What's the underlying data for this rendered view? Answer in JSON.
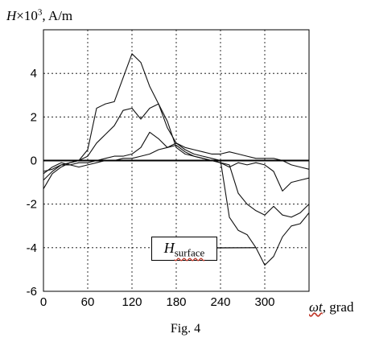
{
  "figure": {
    "caption": "Fig. 4"
  },
  "chart_data": {
    "type": "line",
    "ylabel": {
      "symbol": "H",
      "mult": "×10",
      "exp": "3",
      "unit": ", A/m"
    },
    "xlabel": {
      "symbol": "ωt",
      "rest": ", grad"
    },
    "xlim": [
      0,
      360
    ],
    "ylim": [
      -6,
      6
    ],
    "xticks": [
      "0",
      "60",
      "120",
      "180",
      "240",
      "300"
    ],
    "yticks": [
      "-6",
      "-4",
      "-2",
      "0",
      "2",
      "4"
    ],
    "grid": true,
    "annotation": {
      "symbol": "H",
      "subscript": "surface",
      "points_to": "curve-surface"
    },
    "series": [
      {
        "id": "curve-surface",
        "x": [
          0,
          12,
          24,
          36,
          48,
          60,
          72,
          84,
          96,
          108,
          120,
          132,
          144,
          156,
          168,
          180,
          192,
          204,
          216,
          228,
          240,
          252,
          264,
          276,
          288,
          300,
          312,
          324,
          336,
          348,
          360
        ],
        "y": [
          -0.9,
          -0.5,
          -0.2,
          -0.1,
          0.0,
          0.5,
          2.4,
          2.6,
          2.7,
          3.8,
          4.9,
          4.5,
          3.4,
          2.6,
          1.5,
          0.8,
          0.5,
          0.3,
          0.2,
          0.1,
          0.0,
          -2.6,
          -3.2,
          -3.4,
          -4.0,
          -4.8,
          -4.4,
          -3.5,
          -3.0,
          -2.9,
          -2.4
        ]
      },
      {
        "id": "curve-2",
        "x": [
          0,
          12,
          24,
          36,
          48,
          60,
          72,
          84,
          96,
          108,
          120,
          132,
          144,
          156,
          168,
          180,
          192,
          204,
          216,
          228,
          240,
          252,
          264,
          276,
          288,
          300,
          312,
          324,
          336,
          348,
          360
        ],
        "y": [
          -1.3,
          -0.6,
          -0.3,
          -0.1,
          0.0,
          0.2,
          0.8,
          1.2,
          1.6,
          2.3,
          2.4,
          1.9,
          2.4,
          2.6,
          1.8,
          0.6,
          0.3,
          0.2,
          0.1,
          0.0,
          -0.1,
          -0.2,
          -1.5,
          -2.0,
          -2.3,
          -2.5,
          -2.1,
          -2.5,
          -2.6,
          -2.4,
          -2.0
        ]
      },
      {
        "id": "curve-3",
        "x": [
          0,
          12,
          24,
          36,
          48,
          60,
          72,
          84,
          96,
          108,
          120,
          132,
          144,
          156,
          168,
          180,
          192,
          204,
          216,
          228,
          240,
          252,
          264,
          276,
          288,
          300,
          312,
          324,
          336,
          348,
          360
        ],
        "y": [
          -0.5,
          -0.4,
          -0.2,
          -0.2,
          -0.1,
          -0.1,
          0.0,
          0.1,
          0.2,
          0.2,
          0.3,
          0.6,
          1.3,
          1.0,
          0.6,
          0.7,
          0.4,
          0.2,
          0.1,
          0.0,
          -0.1,
          -0.3,
          -0.1,
          -0.2,
          -0.1,
          -0.2,
          -0.5,
          -1.4,
          -1.0,
          -0.9,
          -0.8
        ]
      },
      {
        "id": "curve-4",
        "x": [
          0,
          12,
          24,
          36,
          48,
          60,
          72,
          84,
          96,
          108,
          120,
          132,
          144,
          156,
          168,
          180,
          192,
          204,
          216,
          228,
          240,
          252,
          264,
          276,
          288,
          300,
          312,
          324,
          336,
          348,
          360
        ],
        "y": [
          -0.6,
          -0.3,
          -0.1,
          -0.2,
          -0.3,
          -0.2,
          -0.1,
          0.0,
          0.0,
          0.1,
          0.1,
          0.2,
          0.3,
          0.5,
          0.6,
          0.8,
          0.6,
          0.5,
          0.4,
          0.3,
          0.3,
          0.4,
          0.3,
          0.2,
          0.1,
          0.1,
          0.1,
          0.0,
          -0.2,
          -0.3,
          -0.4
        ]
      }
    ]
  }
}
